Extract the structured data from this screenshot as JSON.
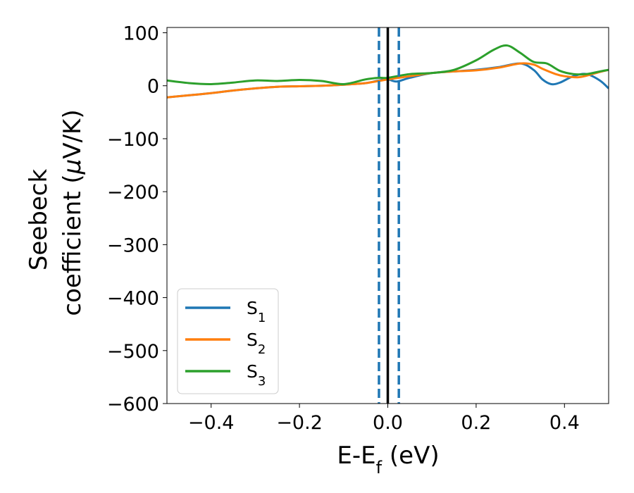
{
  "chart_data": {
    "type": "line",
    "title": "",
    "xlabel": "E-E",
    "xlabel_sub": "f",
    "xlabel_unit": " (eV)",
    "ylabel_line1": "Seebeck",
    "ylabel_line2_pre": "coefficient  (",
    "ylabel_line2_mu": "μ",
    "ylabel_line2_post": "V/K)",
    "xlim": [
      -0.5,
      0.5
    ],
    "ylim": [
      -600,
      110
    ],
    "xticks": [
      {
        "value": -0.4,
        "label": "−0.4"
      },
      {
        "value": -0.2,
        "label": "−0.2"
      },
      {
        "value": 0.0,
        "label": "0.0"
      },
      {
        "value": 0.2,
        "label": "0.2"
      },
      {
        "value": 0.4,
        "label": "0.4"
      }
    ],
    "yticks": [
      {
        "value": 100,
        "label": "100"
      },
      {
        "value": 0,
        "label": "0"
      },
      {
        "value": -100,
        "label": "−100"
      },
      {
        "value": -200,
        "label": "−200"
      },
      {
        "value": -300,
        "label": "−300"
      },
      {
        "value": -400,
        "label": "−400"
      },
      {
        "value": -500,
        "label": "−500"
      },
      {
        "value": -600,
        "label": "−600"
      }
    ],
    "grid": false,
    "legend_position": "lower-left",
    "vlines": [
      {
        "x": 0.0,
        "color": "#000000",
        "style": "solid"
      },
      {
        "x": -0.02,
        "color": "#1f77b4",
        "style": "dashed"
      },
      {
        "x": 0.025,
        "color": "#1f77b4",
        "style": "dashed"
      }
    ],
    "series": [
      {
        "name": "S",
        "sub": "1",
        "color": "#1f77b4",
        "x": [
          -0.5,
          -0.45,
          -0.4,
          -0.35,
          -0.3,
          -0.25,
          -0.2,
          -0.15,
          -0.1,
          -0.05,
          -0.02,
          0.0,
          0.02,
          0.05,
          0.1,
          0.15,
          0.2,
          0.25,
          0.3,
          0.33,
          0.35,
          0.37,
          0.39,
          0.42,
          0.45,
          0.48,
          0.5
        ],
        "y": [
          -22,
          -18,
          -14,
          -9,
          -5,
          -2,
          -1,
          0,
          2,
          5,
          10,
          12,
          8,
          15,
          24,
          27,
          30,
          35,
          42,
          30,
          12,
          3,
          6,
          18,
          22,
          10,
          -5
        ]
      },
      {
        "name": "S",
        "sub": "2",
        "color": "#ff7f0e",
        "x": [
          -0.5,
          -0.45,
          -0.4,
          -0.35,
          -0.3,
          -0.25,
          -0.2,
          -0.15,
          -0.1,
          -0.05,
          0.0,
          0.05,
          0.1,
          0.15,
          0.2,
          0.25,
          0.3,
          0.33,
          0.35,
          0.38,
          0.4,
          0.43,
          0.45,
          0.48,
          0.5
        ],
        "y": [
          -22,
          -18,
          -14,
          -9,
          -5,
          -2,
          -1,
          0,
          2,
          5,
          12,
          18,
          24,
          27,
          29,
          34,
          42,
          40,
          32,
          22,
          18,
          16,
          19,
          26,
          30
        ]
      },
      {
        "name": "S",
        "sub": "3",
        "color": "#2ca02c",
        "x": [
          -0.5,
          -0.45,
          -0.4,
          -0.35,
          -0.3,
          -0.25,
          -0.2,
          -0.15,
          -0.1,
          -0.05,
          -0.02,
          0.0,
          0.05,
          0.1,
          0.15,
          0.2,
          0.24,
          0.27,
          0.3,
          0.33,
          0.36,
          0.39,
          0.42,
          0.45,
          0.48,
          0.5
        ],
        "y": [
          10,
          5,
          3,
          6,
          10,
          9,
          11,
          9,
          3,
          12,
          15,
          15,
          22,
          24,
          30,
          48,
          68,
          76,
          62,
          45,
          42,
          28,
          22,
          22,
          27,
          30
        ]
      }
    ]
  }
}
